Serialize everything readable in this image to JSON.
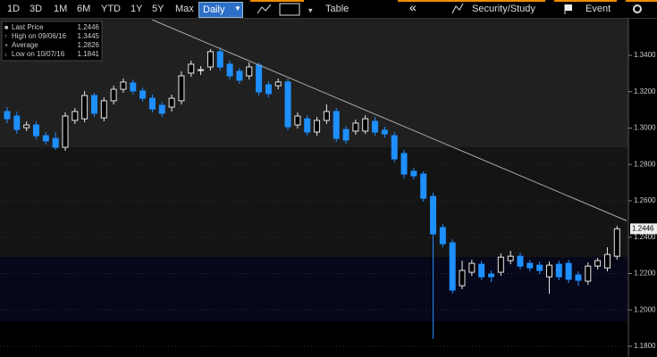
{
  "toolbar": {
    "ranges": [
      "1D",
      "3D",
      "1M",
      "6M",
      "YTD",
      "1Y",
      "5Y",
      "Max"
    ],
    "frequency": "Daily",
    "table": "Table",
    "collapse": "«",
    "study": "Security/Study",
    "event": "Event"
  },
  "chart_data": {
    "type": "candlestick",
    "legend": [
      {
        "label": "Last Price",
        "value": 1.2446
      },
      {
        "label": "High on 09/06/16",
        "value": 1.3445
      },
      {
        "label": "Average",
        "value": 1.2826
      },
      {
        "label": "Low on 10/07/16",
        "value": 1.1841
      }
    ],
    "open": [
      1.3091,
      1.3066,
      1.3002,
      1.3017,
      1.2958,
      1.2943,
      1.2894,
      1.3042,
      1.3051,
      1.3179,
      1.3056,
      1.315,
      1.3213,
      1.3248,
      1.3204,
      1.3164,
      1.3125,
      1.3115,
      1.315,
      1.3302,
      1.3317,
      1.3336,
      1.342,
      1.3351,
      1.3312,
      1.3287,
      1.3346,
      1.3238,
      1.3233,
      1.3253,
      1.3017,
      1.3051,
      1.2978,
      1.3042,
      1.3091,
      1.2992,
      1.2983,
      1.2983,
      1.3037,
      1.2988,
      1.2958,
      1.286,
      1.2762,
      1.2747,
      1.2624,
      1.2453,
      1.2369,
      1.2133,
      1.2207,
      1.2251,
      1.2197,
      1.2207,
      1.2271,
      1.2295,
      1.2256,
      1.2246,
      1.2182,
      1.2251,
      1.2256,
      1.2192,
      1.2158,
      1.2241,
      1.2231,
      1.2295
    ],
    "high": [
      1.3115,
      1.3091,
      1.3037,
      1.3037,
      1.2978,
      1.2978,
      1.3086,
      1.311,
      1.3204,
      1.3194,
      1.3169,
      1.3233,
      1.3272,
      1.3267,
      1.3223,
      1.3184,
      1.3145,
      1.3184,
      1.3312,
      1.3371,
      1.3341,
      1.3435,
      1.3445,
      1.3371,
      1.3331,
      1.3361,
      1.3361,
      1.3258,
      1.3272,
      1.3272,
      1.3086,
      1.3071,
      1.3061,
      1.313,
      1.311,
      1.3012,
      1.3046,
      1.3071,
      1.3061,
      1.3007,
      1.2978,
      1.288,
      1.2781,
      1.2762,
      1.2644,
      1.2472,
      1.2389,
      1.2271,
      1.2276,
      1.2271,
      1.2217,
      1.231,
      1.2325,
      1.2315,
      1.2276,
      1.2266,
      1.2266,
      1.2271,
      1.2276,
      1.2212,
      1.2261,
      1.2286,
      1.2344,
      1.2462
    ],
    "low": [
      1.3027,
      1.2968,
      1.2983,
      1.2938,
      1.2909,
      1.288,
      1.2875,
      1.3022,
      1.3032,
      1.3061,
      1.3037,
      1.313,
      1.3194,
      1.3184,
      1.3145,
      1.3086,
      1.3061,
      1.3091,
      1.313,
      1.3282,
      1.3292,
      1.3317,
      1.3317,
      1.3267,
      1.3243,
      1.3267,
      1.3179,
      1.3169,
      1.3213,
      1.2988,
      1.2997,
      1.2958,
      1.2958,
      1.3022,
      1.2924,
      1.2914,
      1.2963,
      1.2968,
      1.2958,
      1.2948,
      1.2811,
      1.2722,
      1.2717,
      1.2595,
      1.1841,
      1.2344,
      1.2089,
      1.2114,
      1.2187,
      1.2163,
      1.2153,
      1.2187,
      1.2251,
      1.2222,
      1.2212,
      1.2197,
      1.2089,
      1.2163,
      1.2148,
      1.2133,
      1.2138,
      1.2222,
      1.2212,
      1.2276
    ],
    "close": [
      1.3051,
      1.2992,
      1.3017,
      1.2958,
      1.2929,
      1.2894,
      1.3066,
      1.3091,
      1.3179,
      1.3081,
      1.315,
      1.3213,
      1.3253,
      1.3204,
      1.3164,
      1.3105,
      1.3081,
      1.3164,
      1.3287,
      1.3351,
      1.3321,
      1.342,
      1.3336,
      1.3287,
      1.3263,
      1.3336,
      1.3199,
      1.3189,
      1.3253,
      1.3007,
      1.3066,
      1.2978,
      1.3042,
      1.3091,
      1.2943,
      1.2934,
      1.3027,
      1.3051,
      1.2978,
      1.2968,
      1.283,
      1.2747,
      1.2737,
      1.2614,
      1.2418,
      1.2364,
      1.2109,
      1.2217,
      1.2256,
      1.2182,
      1.2182,
      1.229,
      1.2295,
      1.2241,
      1.2231,
      1.2217,
      1.2246,
      1.2182,
      1.2168,
      1.2163,
      1.2241,
      1.2271,
      1.2305,
      1.2446
    ],
    "up_color": "#e8e8e8",
    "down_color": "#1e8fff",
    "trendline": {
      "start_index": 15,
      "start_value": 1.3595,
      "end_index": 64,
      "end_value": 1.249
    },
    "ylim": [
      1.1741,
      1.3606
    ],
    "yticks": [
      {
        "value": 1.34,
        "label": "1.3400"
      },
      {
        "value": 1.32,
        "label": "1.3200"
      },
      {
        "value": 1.3,
        "label": "1.3000"
      },
      {
        "value": 1.28,
        "label": "1.2800"
      },
      {
        "value": 1.26,
        "label": "1.2600"
      },
      {
        "value": 1.24,
        "label": "1.2400"
      },
      {
        "value": 1.22,
        "label": "1.2200"
      },
      {
        "value": 1.2,
        "label": "1.2000"
      },
      {
        "value": 1.18,
        "label": "1.1800"
      }
    ],
    "grid": true
  }
}
